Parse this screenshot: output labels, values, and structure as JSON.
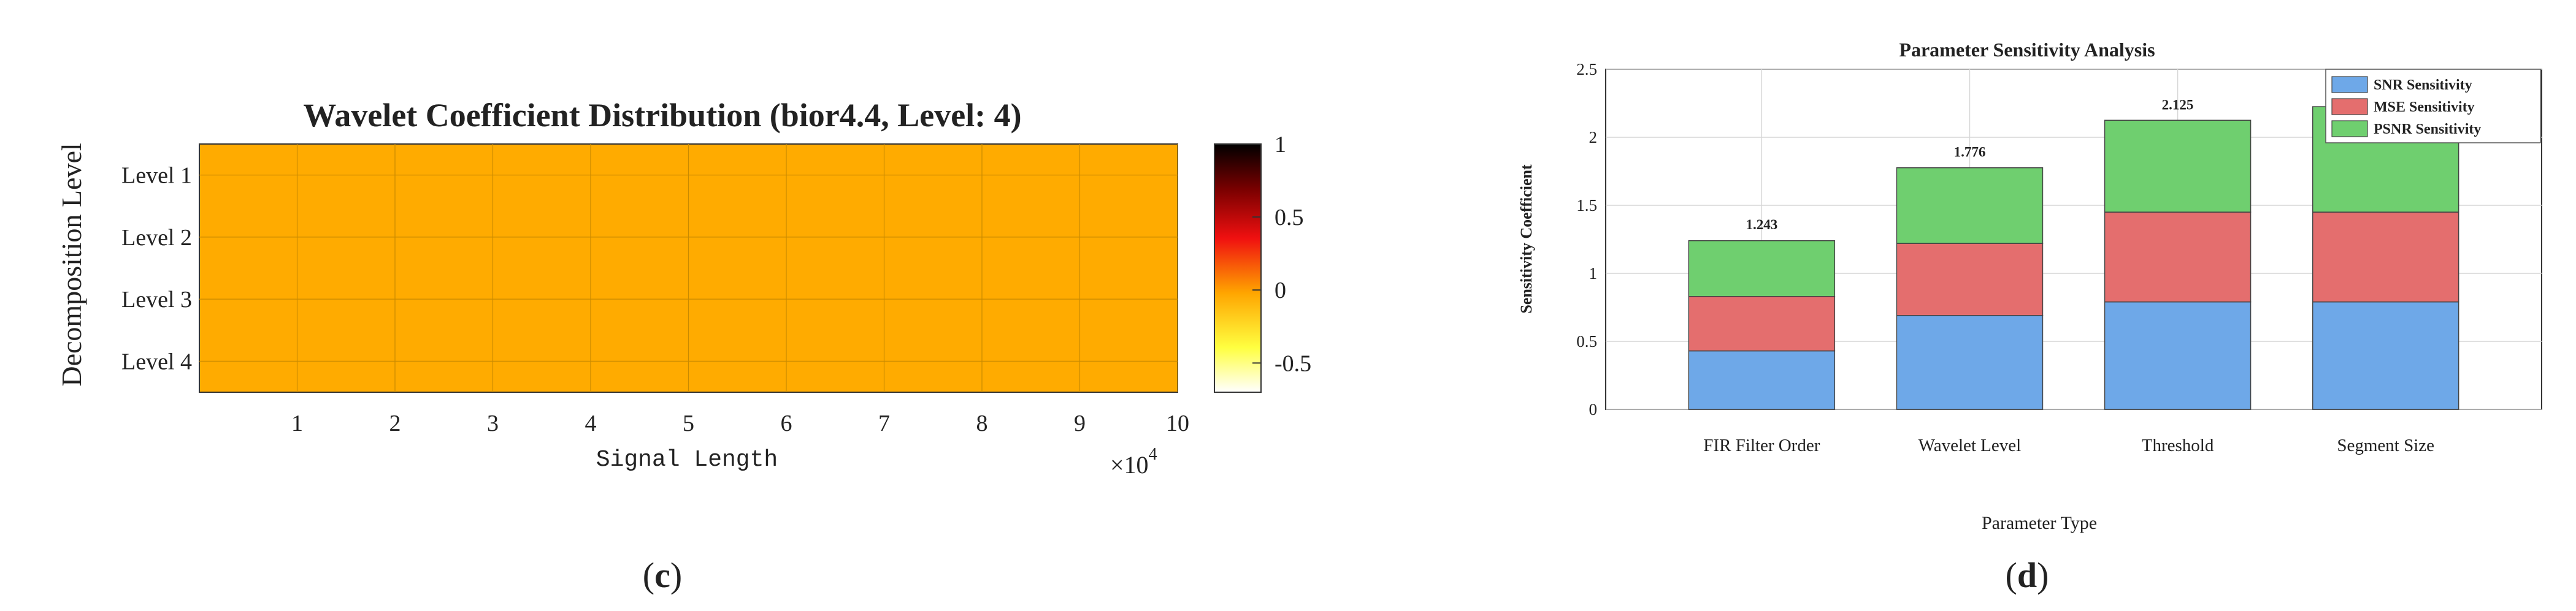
{
  "chart_data": [
    {
      "type": "heatmap",
      "panel_label": "c",
      "title": "Wavelet Coefficient Distribution (bior4.4, Level: 4)",
      "xlabel": "Signal Length",
      "ylabel": "Decomposition Level",
      "x_ticks": [
        "1",
        "2",
        "3",
        "4",
        "5",
        "6",
        "7",
        "8",
        "9",
        "10"
      ],
      "x_multiplier_base": "×10",
      "x_multiplier_exp": "4",
      "xlim": [
        0,
        10
      ],
      "rows": [
        "Level 1",
        "Level 2",
        "Level 3",
        "Level 4"
      ],
      "value": 0,
      "fill_color": "#ffab00",
      "colorbar": {
        "ticks": [
          "1",
          "0.5",
          "0",
          "-0.5"
        ],
        "tick_values": [
          1,
          0.5,
          0,
          -0.5
        ],
        "range": [
          -0.7,
          1
        ],
        "colormap": "hot"
      }
    },
    {
      "type": "bar",
      "stacked": true,
      "panel_label": "d",
      "title": "Parameter Sensitivity Analysis",
      "xlabel": "Parameter Type",
      "ylabel": "Sensitivity Coefficient",
      "categories": [
        "FIR Filter Order",
        "Wavelet Level",
        "Threshold",
        "Segment Size"
      ],
      "series": [
        {
          "name": "SNR Sensitivity",
          "values": [
            0.43,
            0.69,
            0.79,
            0.79
          ],
          "color": "#6ea8e8"
        },
        {
          "name": "MSE Sensitivity",
          "values": [
            0.4,
            0.53,
            0.66,
            0.66
          ],
          "color": "#e46e6e"
        },
        {
          "name": "PSNR Sensitivity",
          "values": [
            0.41,
            0.556,
            0.675,
            0.775
          ],
          "color": "#6fcf6f"
        }
      ],
      "totals": [
        "1.243",
        "1.776",
        "2.125",
        "2.225"
      ],
      "total_values": [
        1.243,
        1.776,
        2.125,
        2.225
      ],
      "ylim": [
        0,
        2.5
      ],
      "y_ticks": [
        "0",
        "0.5",
        "1",
        "1.5",
        "2",
        "2.5"
      ],
      "grid": true,
      "legend": "top-right"
    }
  ]
}
